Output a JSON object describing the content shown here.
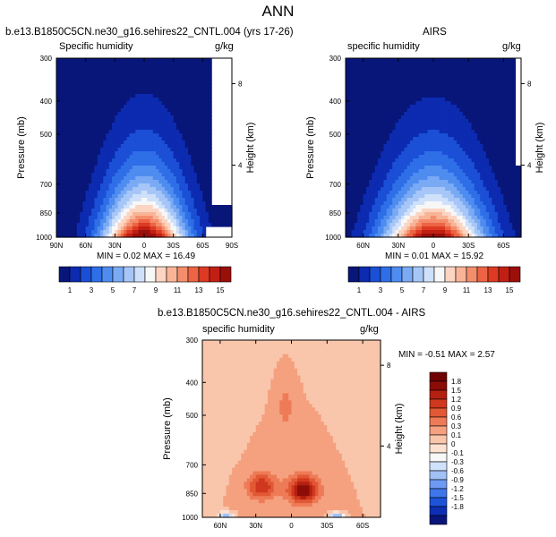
{
  "page_title": "ANN",
  "colors": {
    "pos_scale": [
      "#08167a",
      "#0c2bb0",
      "#1a4fd6",
      "#2e6fe8",
      "#4f8cf0",
      "#7aaaf4",
      "#a6c6f7",
      "#cfe0fa",
      "#f7f7f7",
      "#fbd5c2",
      "#f9b497",
      "#f48d6c",
      "#ec6444",
      "#dc3a23",
      "#c21f14",
      "#9b0f0b",
      "#6f0303"
    ],
    "diff_scale": [
      "#08167a",
      "#0d2fb5",
      "#1c53d9",
      "#3f77ea",
      "#6d9af2",
      "#a1c0f6",
      "#cfe1fb",
      "#f7f7f7",
      "#fde2d2",
      "#f9c6ac",
      "#f5a17f",
      "#ee7b57",
      "#e25835",
      "#cf381e",
      "#b42010",
      "#8c0c07",
      "#6f0303"
    ]
  },
  "panels": {
    "model": {
      "title": "b.e13.B1850C5CN.ne30_g16.sehires22_CNTL.004 (yrs 17-26)",
      "left_label": "Specific humidity",
      "units": "g/kg",
      "stats": "MIN =  0.02  MAX =  16.49"
    },
    "obs": {
      "title": "AIRS",
      "left_label": "specific humidity",
      "units": "g/kg",
      "stats": "MIN =  0.01  MAX =  15.92"
    },
    "diff": {
      "title": "b.e13.B1850C5CN.ne30_g16.sehires22_CNTL.004 - AIRS",
      "left_label": "specific humidity",
      "units": "g/kg",
      "stats": "MIN = -0.51  MAX =   2.57"
    }
  },
  "chart_data": [
    {
      "type": "contour",
      "id": "model",
      "title": "b.e13.B1850C5CN.ne30_g16.sehires22_CNTL.004 (yrs 17-26)",
      "variable": "Specific humidity",
      "units": "g/kg",
      "xlabel": "",
      "ylabel": "Pressure (mb)",
      "y2label": "Height (km)",
      "x_ticks": [
        "90N",
        "60N",
        "30N",
        "0",
        "30S",
        "60S",
        "90S"
      ],
      "x_values": [
        90,
        60,
        30,
        0,
        -30,
        -60,
        -90
      ],
      "xlim": [
        90,
        -90
      ],
      "y_ticks": [
        "300",
        "400",
        "500",
        "700",
        "850",
        "1000"
      ],
      "y_values": [
        300,
        400,
        500,
        700,
        850,
        1000
      ],
      "ylim": [
        300,
        1000
      ],
      "y2_ticks": [
        "8",
        "4"
      ],
      "contour_levels": [
        1,
        2,
        3,
        4,
        5,
        6,
        7,
        8,
        9,
        10,
        11,
        12,
        13,
        14,
        15
      ],
      "peak_location": {
        "lat": 0,
        "pressure_mb": 1000
      },
      "min": 0.02,
      "max": 16.49
    },
    {
      "type": "contour",
      "id": "obs",
      "title": "AIRS",
      "variable": "specific humidity",
      "units": "g/kg",
      "xlabel": "",
      "ylabel": "Pressure (mb)",
      "y2label": "Height (km)",
      "x_ticks": [
        "60N",
        "30N",
        "0",
        "30S",
        "60S"
      ],
      "x_values": [
        60,
        30,
        0,
        -30,
        -60
      ],
      "xlim": [
        75,
        -75
      ],
      "y_ticks": [
        "300",
        "400",
        "500",
        "700",
        "850",
        "1000"
      ],
      "y_values": [
        300,
        400,
        500,
        700,
        850,
        1000
      ],
      "ylim": [
        300,
        1000
      ],
      "y2_ticks": [
        "8",
        "4"
      ],
      "contour_levels": [
        1,
        2,
        3,
        4,
        5,
        6,
        7,
        8,
        9,
        10,
        11,
        12,
        13,
        14,
        15
      ],
      "peak_location": {
        "lat": 0,
        "pressure_mb": 1000
      },
      "min": 0.01,
      "max": 15.92
    },
    {
      "type": "contour",
      "id": "diff",
      "title": "b.e13.B1850C5CN.ne30_g16.sehires22_CNTL.004 - AIRS",
      "variable": "specific humidity",
      "units": "g/kg",
      "xlabel": "",
      "ylabel": "Pressure (mb)",
      "y2label": "Height (km)",
      "x_ticks": [
        "60N",
        "30N",
        "0",
        "30S",
        "60S"
      ],
      "x_values": [
        60,
        30,
        0,
        -30,
        -60
      ],
      "xlim": [
        75,
        -75
      ],
      "y_ticks": [
        "300",
        "400",
        "500",
        "700",
        "850",
        "1000"
      ],
      "y_values": [
        300,
        400,
        500,
        700,
        850,
        1000
      ],
      "ylim": [
        300,
        1000
      ],
      "y2_ticks": [
        "8",
        "4"
      ],
      "contour_levels": [
        -1.8,
        -1.5,
        -1.2,
        -0.9,
        -0.6,
        -0.3,
        -0.1,
        0,
        0.1,
        0.3,
        0.6,
        0.9,
        1.2,
        1.5,
        1.8
      ],
      "peak_location": {
        "lat": -10,
        "pressure_mb": 850
      },
      "min": -0.51,
      "max": 2.57
    }
  ],
  "colorbar_top": {
    "labels": [
      "1",
      "3",
      "5",
      "7",
      "9",
      "11",
      "13",
      "15"
    ],
    "levels": [
      1,
      2,
      3,
      4,
      5,
      6,
      7,
      8,
      9,
      10,
      11,
      12,
      13,
      14,
      15
    ]
  },
  "colorbar_diff": {
    "labels": [
      "1.8",
      "1.5",
      "1.2",
      "0.9",
      "0.6",
      "0.3",
      "0.1",
      "0",
      "-0.1",
      "-0.3",
      "-0.6",
      "-0.9",
      "-1.2",
      "-1.5",
      "-1.8"
    ]
  }
}
